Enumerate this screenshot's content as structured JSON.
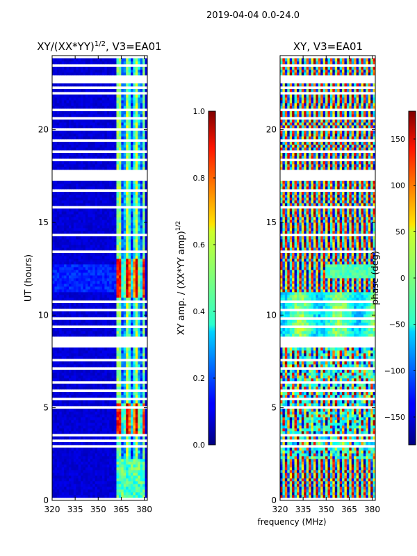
{
  "figure": {
    "suptitle": "2019-04-04 0.0-24.0",
    "shared_xlabel": "frequency (MHz)"
  },
  "chart_data": [
    {
      "type": "heatmap",
      "title": "XY/(XX*YY)",
      "title_exponent": "1/2",
      "title_suffix": ", V3=EA01",
      "xlabel": "",
      "ylabel": "UT (hours)",
      "xlim": [
        320,
        382
      ],
      "ylim": [
        0,
        24
      ],
      "xticks": [
        "320",
        "335",
        "350",
        "365",
        "380"
      ],
      "xtick_values": [
        320,
        335,
        350,
        365,
        380
      ],
      "yticks": [
        "0",
        "5",
        "10",
        "15",
        "20"
      ],
      "ytick_values": [
        0,
        5,
        10,
        15,
        20
      ],
      "colorbar": {
        "label": "XY amp. / (XX*YY amp)",
        "label_exponent": "1/2",
        "range": [
          0.0,
          1.0
        ],
        "ticks": [
          "0.0",
          "0.2",
          "0.4",
          "0.6",
          "0.8",
          "1.0"
        ],
        "tick_values": [
          0.0,
          0.2,
          0.4,
          0.6,
          0.8,
          1.0
        ],
        "colormap": "jet"
      }
    },
    {
      "type": "heatmap",
      "title": "XY, V3=EA01",
      "xlabel": "frequency (MHz)",
      "ylabel": "",
      "xlim": [
        320,
        382
      ],
      "ylim": [
        0,
        24
      ],
      "xticks": [
        "320",
        "335",
        "350",
        "365",
        "380"
      ],
      "xtick_values": [
        320,
        335,
        350,
        365,
        380
      ],
      "yticks": [
        "0",
        "5",
        "10",
        "15",
        "20"
      ],
      "ytick_values": [
        0,
        5,
        10,
        15,
        20
      ],
      "colorbar": {
        "label": "phase (deg)",
        "range": [
          -180,
          180
        ],
        "ticks": [
          "−150",
          "−100",
          "−50",
          "0",
          "50",
          "100",
          "150"
        ],
        "tick_values": [
          -150,
          -100,
          -50,
          0,
          50,
          100,
          150
        ],
        "colormap": "jet"
      }
    }
  ]
}
